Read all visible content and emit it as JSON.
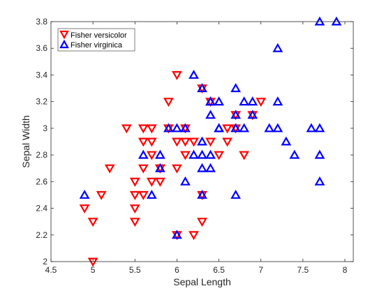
{
  "chart_data": {
    "type": "scatter",
    "xlabel": "Sepal Length",
    "ylabel": "Sepal Width",
    "xlim": [
      4.5,
      8.1
    ],
    "ylim": [
      2.0,
      3.8
    ],
    "xticks": [
      "4.5",
      "5",
      "5.5",
      "6",
      "6.5",
      "7",
      "7.5",
      "8"
    ],
    "yticks": [
      "2",
      "2.2",
      "2.4",
      "2.6",
      "2.8",
      "3",
      "3.2",
      "3.4",
      "3.6",
      "3.8"
    ],
    "grid": false,
    "legend_position": "top-left",
    "series": [
      {
        "name": "Fisher versicolor",
        "marker": "triangle-down",
        "color": "#ff0000",
        "points": [
          [
            7.0,
            3.2
          ],
          [
            6.4,
            3.2
          ],
          [
            6.9,
            3.1
          ],
          [
            5.5,
            2.3
          ],
          [
            6.5,
            2.8
          ],
          [
            5.7,
            2.8
          ],
          [
            6.3,
            3.3
          ],
          [
            4.9,
            2.4
          ],
          [
            6.6,
            2.9
          ],
          [
            5.2,
            2.7
          ],
          [
            5.0,
            2.0
          ],
          [
            5.9,
            3.0
          ],
          [
            6.0,
            2.2
          ],
          [
            6.1,
            2.9
          ],
          [
            5.6,
            2.9
          ],
          [
            6.7,
            3.1
          ],
          [
            5.6,
            3.0
          ],
          [
            5.8,
            2.7
          ],
          [
            6.2,
            2.2
          ],
          [
            5.6,
            2.5
          ],
          [
            5.9,
            3.2
          ],
          [
            6.1,
            2.8
          ],
          [
            6.3,
            2.5
          ],
          [
            6.4,
            2.9
          ],
          [
            6.6,
            3.0
          ],
          [
            6.8,
            2.8
          ],
          [
            6.7,
            3.0
          ],
          [
            6.0,
            2.9
          ],
          [
            5.7,
            2.6
          ],
          [
            5.5,
            2.4
          ],
          [
            5.8,
            2.7
          ],
          [
            6.0,
            2.7
          ],
          [
            5.4,
            3.0
          ],
          [
            6.0,
            3.4
          ],
          [
            6.3,
            2.3
          ],
          [
            5.5,
            2.5
          ],
          [
            5.5,
            2.6
          ],
          [
            6.1,
            3.0
          ],
          [
            5.8,
            2.6
          ],
          [
            5.0,
            2.3
          ],
          [
            5.6,
            2.7
          ],
          [
            5.7,
            3.0
          ],
          [
            5.7,
            2.9
          ],
          [
            6.2,
            2.9
          ],
          [
            5.1,
            2.5
          ]
        ]
      },
      {
        "name": "Fisher virginica",
        "marker": "triangle-up",
        "color": "#0000ff",
        "points": [
          [
            6.3,
            3.3
          ],
          [
            5.8,
            2.7
          ],
          [
            7.1,
            3.0
          ],
          [
            6.3,
            2.9
          ],
          [
            6.5,
            3.0
          ],
          [
            7.6,
            3.0
          ],
          [
            4.9,
            2.5
          ],
          [
            7.3,
            2.9
          ],
          [
            6.7,
            2.5
          ],
          [
            7.2,
            3.6
          ],
          [
            6.5,
            3.2
          ],
          [
            6.4,
            2.7
          ],
          [
            6.8,
            3.0
          ],
          [
            5.7,
            2.5
          ],
          [
            5.8,
            2.8
          ],
          [
            6.4,
            3.2
          ],
          [
            7.7,
            3.8
          ],
          [
            7.7,
            2.6
          ],
          [
            6.0,
            2.2
          ],
          [
            6.9,
            3.2
          ],
          [
            5.6,
            2.8
          ],
          [
            7.7,
            2.8
          ],
          [
            6.3,
            2.7
          ],
          [
            6.7,
            3.3
          ],
          [
            7.2,
            3.2
          ],
          [
            6.2,
            2.8
          ],
          [
            6.1,
            3.0
          ],
          [
            6.4,
            2.8
          ],
          [
            7.2,
            3.0
          ],
          [
            7.4,
            2.8
          ],
          [
            7.9,
            3.8
          ],
          [
            6.3,
            2.8
          ],
          [
            6.1,
            2.6
          ],
          [
            7.7,
            3.0
          ],
          [
            6.4,
            3.1
          ],
          [
            6.0,
            3.0
          ],
          [
            6.9,
            3.1
          ],
          [
            6.7,
            3.1
          ],
          [
            6.8,
            3.2
          ],
          [
            6.7,
            3.0
          ],
          [
            6.5,
            3.0
          ],
          [
            6.2,
            3.4
          ],
          [
            5.9,
            3.0
          ],
          [
            6.3,
            2.5
          ],
          [
            6.4,
            3.2
          ]
        ]
      }
    ]
  }
}
